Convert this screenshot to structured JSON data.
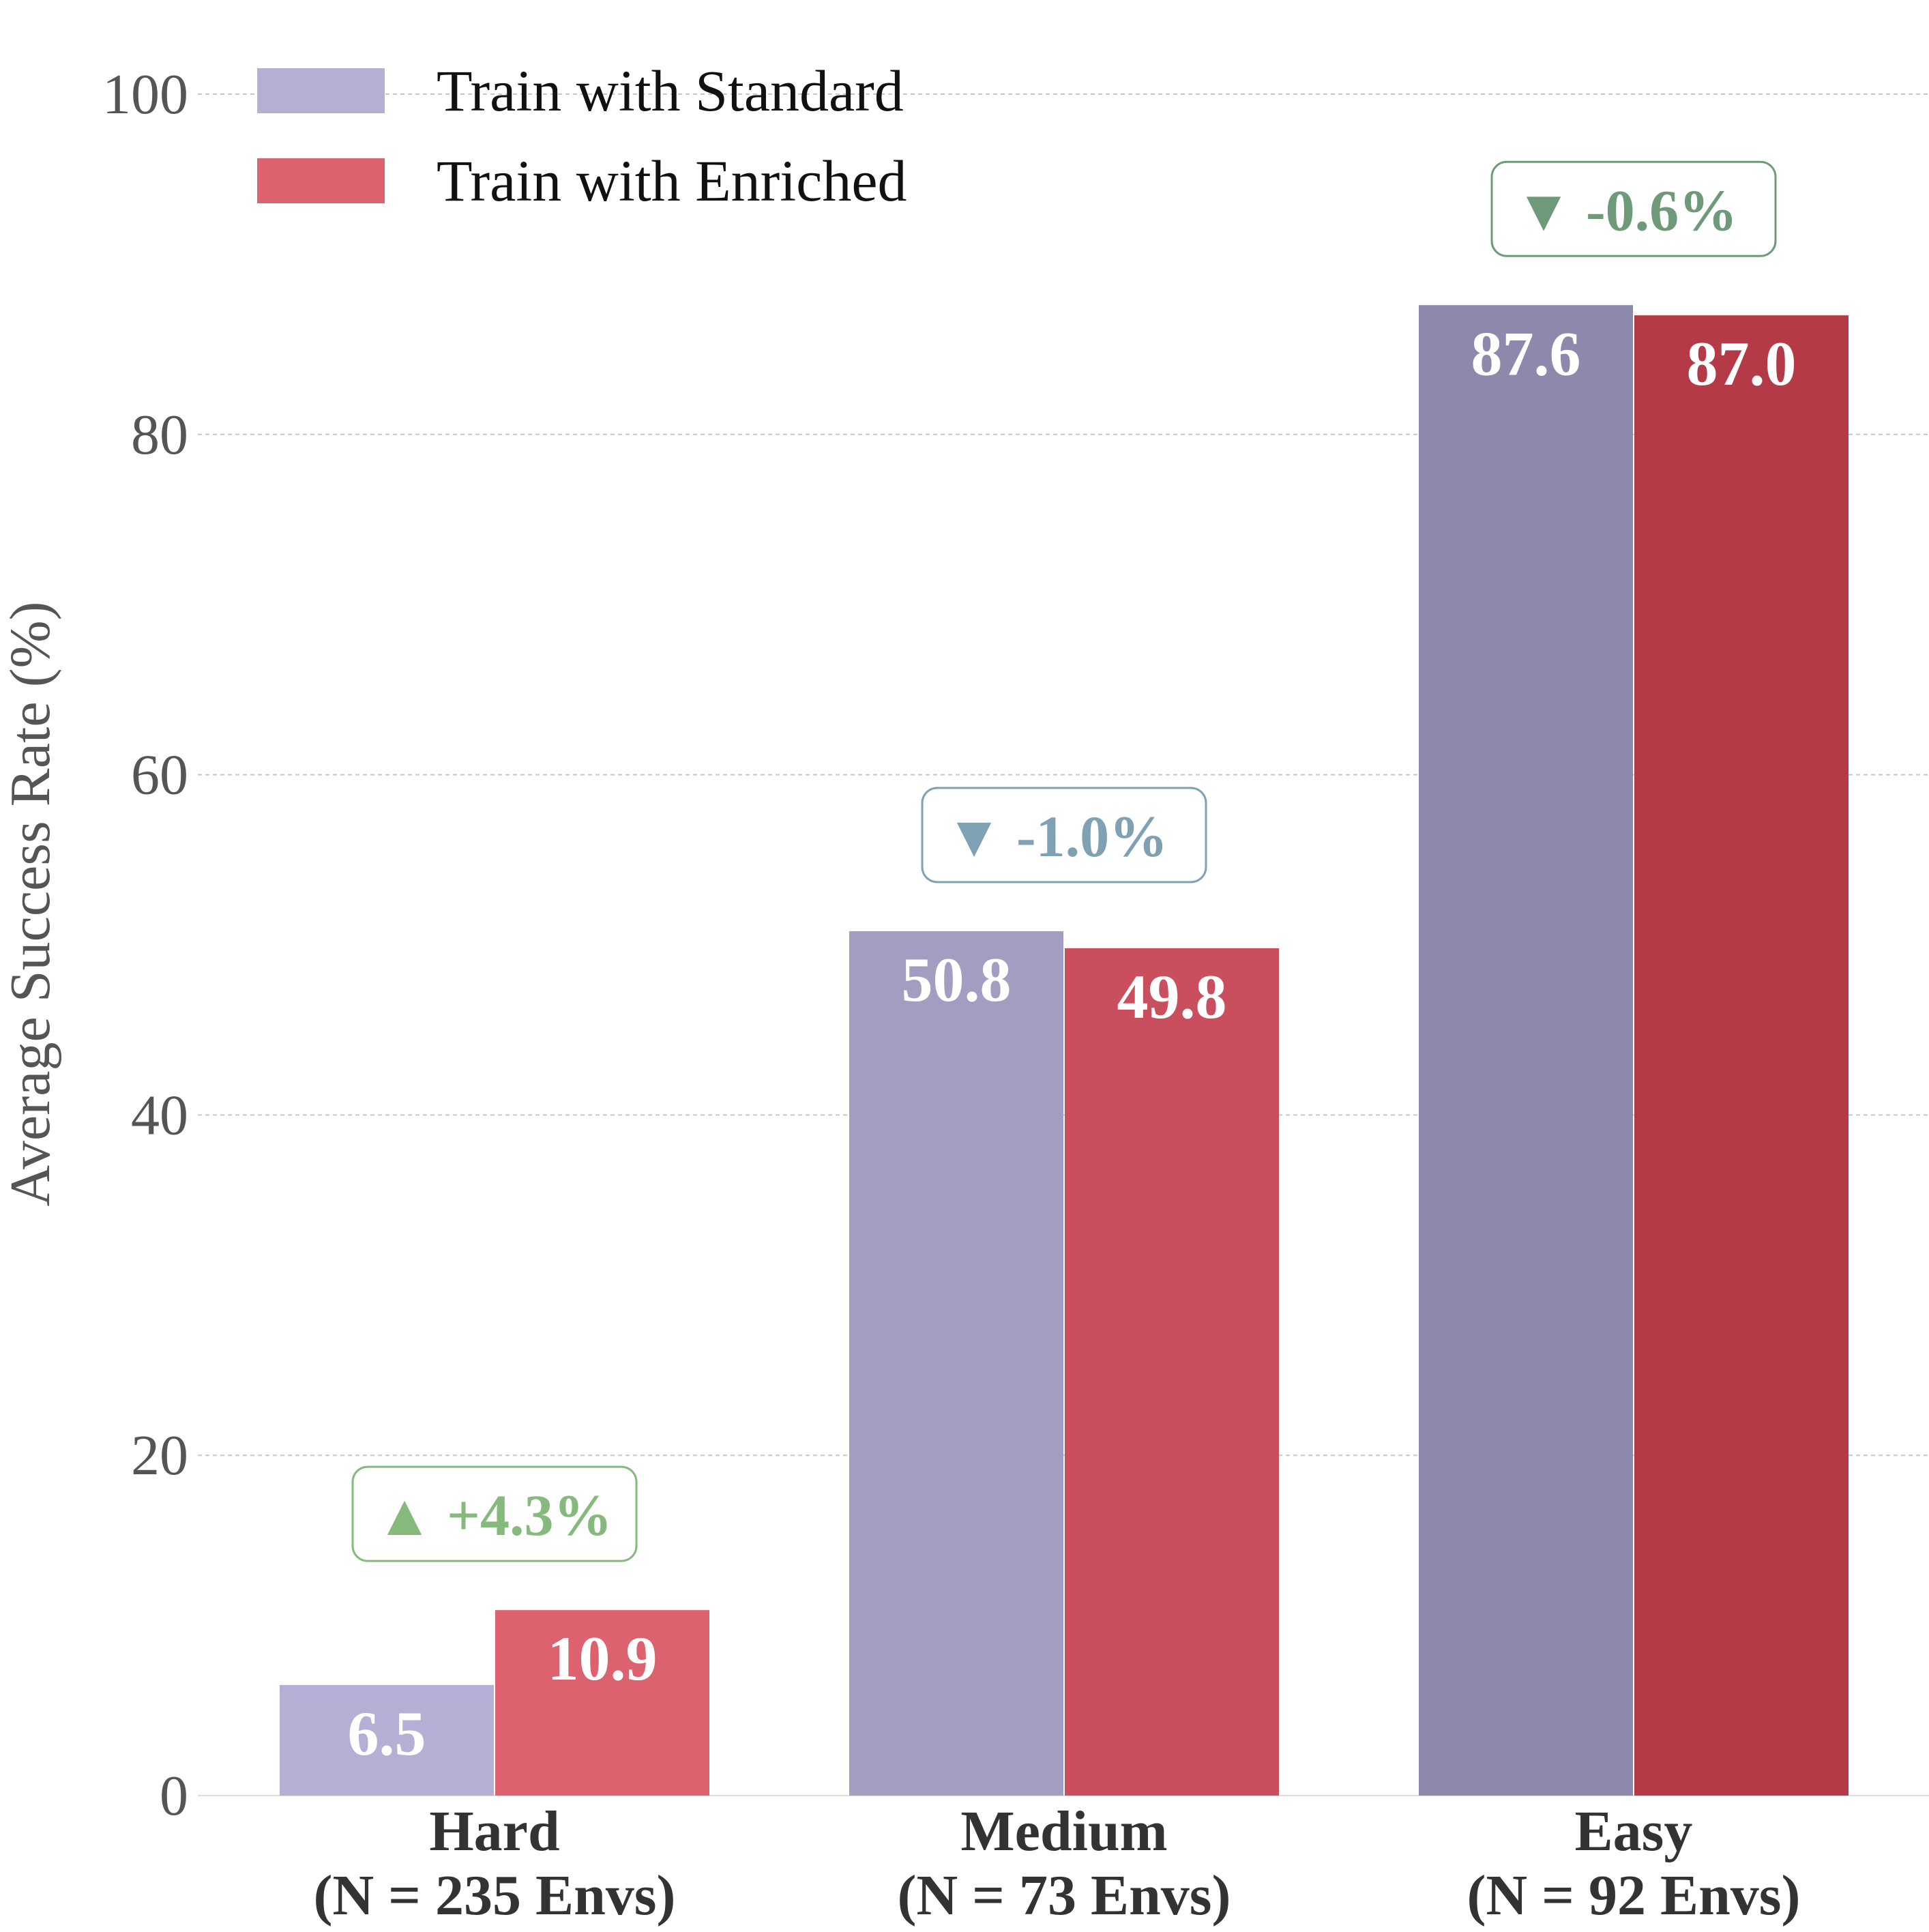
{
  "chart_data": {
    "type": "bar",
    "title": "",
    "xlabel": "",
    "ylabel": "Average Success Rate (%)",
    "ylim": [
      0,
      100
    ],
    "yticks": [
      0,
      20,
      40,
      60,
      80,
      100
    ],
    "grid": true,
    "legend_position": "top-left",
    "categories": [
      {
        "line1": "Hard",
        "line2": "(N = 235 Envs)"
      },
      {
        "line1": "Medium",
        "line2": "(N = 73 Envs)"
      },
      {
        "line1": "Easy",
        "line2": "(N = 92 Envs)"
      }
    ],
    "series": [
      {
        "name": "Train with Standard",
        "legend_color": "#b4b0d5",
        "bar_colors": [
          "#b4b0d5",
          "#a29dc1",
          "#8e88ad"
        ],
        "values": [
          6.5,
          50.8,
          87.6
        ],
        "labels": [
          "6.5",
          "50.8",
          "87.6"
        ]
      },
      {
        "name": "Train with Enriched",
        "legend_color": "#dc6270",
        "bar_colors": [
          "#dc6270",
          "#c94f5e",
          "#b53a47"
        ],
        "values": [
          10.9,
          49.8,
          87.0
        ],
        "labels": [
          "10.9",
          "49.8",
          "87.0"
        ]
      }
    ],
    "deltas": [
      {
        "symbol": "▲",
        "text": "+4.3%",
        "color": "#86b97c"
      },
      {
        "symbol": "▼",
        "text": "-1.0%",
        "color": "#7ea2b4"
      },
      {
        "symbol": "▼",
        "text": "-0.6%",
        "color": "#6e9a7a"
      }
    ]
  }
}
